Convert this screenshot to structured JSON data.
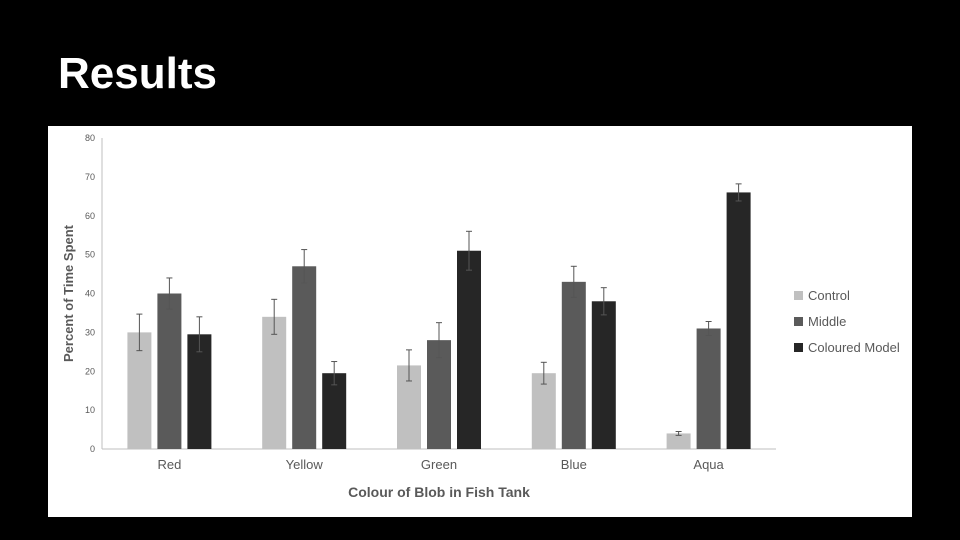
{
  "slide": {
    "title": "Results"
  },
  "chart_data": {
    "type": "bar",
    "title": "",
    "xlabel": "Colour of Blob in Fish Tank",
    "ylabel": "Percent of Time Spent",
    "ylim": [
      0,
      80
    ],
    "yticks": [
      0,
      10,
      20,
      30,
      40,
      50,
      60,
      70,
      80
    ],
    "grid": false,
    "legend_position": "right",
    "categories": [
      "Red",
      "Yellow",
      "Green",
      "Blue",
      "Aqua"
    ],
    "series": [
      {
        "name": "Control",
        "color": "#c0c0c0",
        "values": [
          30,
          34,
          21.5,
          19.5,
          4
        ],
        "errors": [
          4.7,
          4.5,
          4,
          2.8,
          0.5
        ]
      },
      {
        "name": "Middle",
        "color": "#5a5a5a",
        "values": [
          40,
          47,
          28,
          43,
          31
        ],
        "errors": [
          4,
          4.3,
          4.5,
          4,
          1.8
        ]
      },
      {
        "name": "Coloured Model",
        "color": "#262626",
        "values": [
          29.5,
          19.5,
          51,
          38,
          66
        ],
        "errors": [
          4.5,
          3,
          5,
          3.5,
          2.2
        ]
      }
    ]
  }
}
